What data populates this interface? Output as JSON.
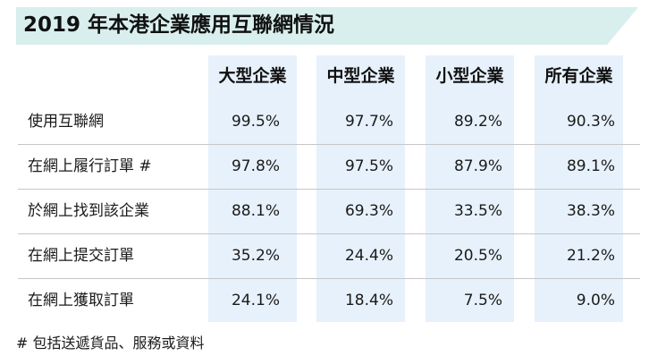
{
  "chart_data": {
    "type": "table",
    "title": "2019 年本港企業應用互聯網情況",
    "columns": [
      "大型企業",
      "中型企業",
      "小型企業",
      "所有企業"
    ],
    "rows": [
      {
        "label": "使用互聯網",
        "values": [
          "99.5%",
          "97.7%",
          "89.2%",
          "90.3%"
        ]
      },
      {
        "label": "在網上履行訂單 #",
        "values": [
          "97.8%",
          "97.5%",
          "87.9%",
          "89.1%"
        ]
      },
      {
        "label": "於網上找到該企業",
        "values": [
          "88.1%",
          "69.3%",
          "33.5%",
          "38.3%"
        ]
      },
      {
        "label": "在網上提交訂單",
        "values": [
          "35.2%",
          "24.4%",
          "20.5%",
          "21.2%"
        ]
      },
      {
        "label": "在網上獲取訂單",
        "values": [
          "24.1%",
          "18.4%",
          "7.5%",
          "9.0%"
        ]
      }
    ],
    "footnote": "# 包括送遞貨品、服務或資料"
  },
  "colors": {
    "title_band": "#d8efed",
    "column_shade": "#e7f1fb",
    "row_divider": "#c6c6c6",
    "text": "#1a1a1a"
  }
}
